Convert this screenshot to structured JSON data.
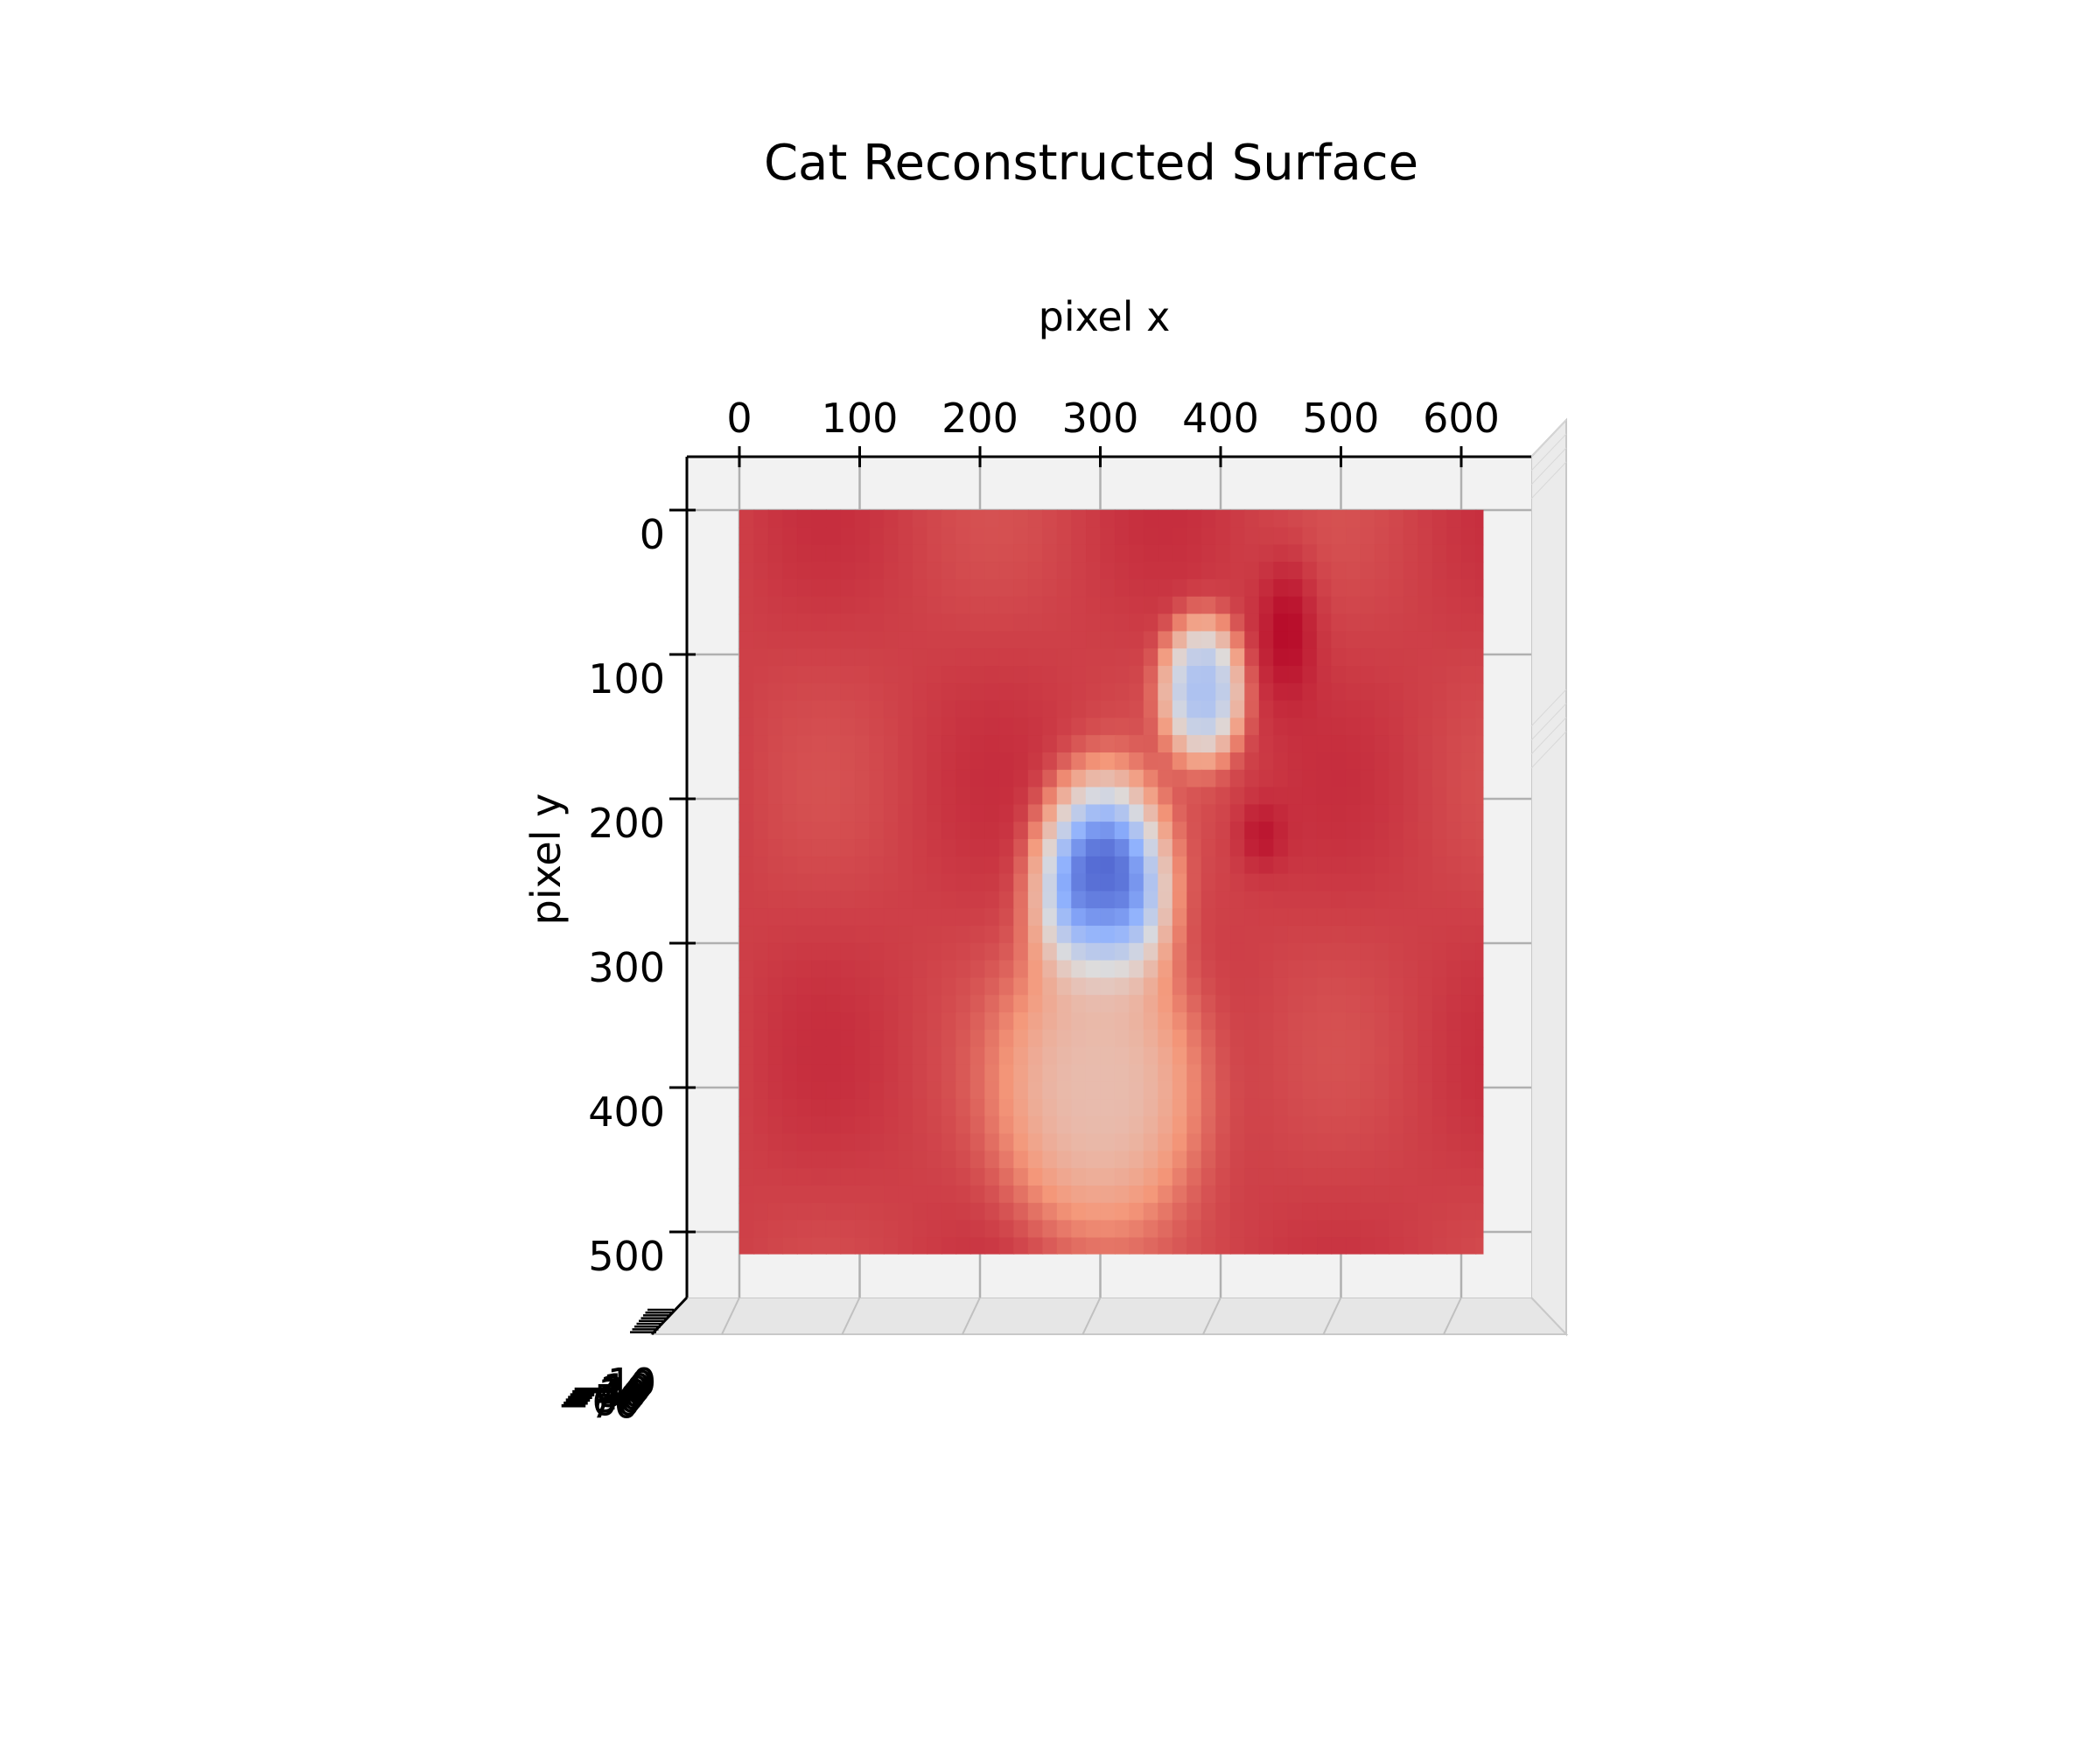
{
  "chart_data": {
    "type": "surface",
    "title": "Cat Reconstructed Surface",
    "xlabel": "pixel x",
    "ylabel": "pixel y",
    "zlabel": "",
    "colormap": "coolwarm",
    "view": "top-down (elevation 90°)",
    "xlim": [
      -42,
      658
    ],
    "ylim": [
      -35,
      555
    ],
    "surface_extent": {
      "x": [
        0,
        618
      ],
      "y": [
        0,
        515
      ]
    },
    "x_ticks": [
      0,
      100,
      200,
      300,
      400,
      500,
      600
    ],
    "y_ticks": [
      0,
      100,
      200,
      300,
      400,
      500
    ],
    "z_ticks_overlapping": [
      "10",
      "0",
      "−10",
      "−20",
      "−30",
      "−40",
      "−50",
      "−60",
      "−70"
    ],
    "colors": {
      "high": "#b40426",
      "mid": "#dddcdc",
      "low": "#3b4cc0",
      "pane": "#f2f2f2",
      "grid": "#b0b0b0"
    },
    "depth_regions": [
      {
        "name": "body",
        "center": [
          302,
          265
        ],
        "radii": [
          55,
          80
        ],
        "min_level": 0.05
      },
      {
        "name": "head",
        "center": [
          385,
          125
        ],
        "radii": [
          35,
          50
        ],
        "min_level": 0.35
      },
      {
        "name": "lower-glow",
        "center": [
          300,
          400
        ],
        "radii": [
          90,
          110
        ],
        "min_level": 0.62
      }
    ],
    "high_regions": [
      {
        "name": "edge-shadow-top",
        "center": [
          455,
          85
        ],
        "radii": [
          30,
          60
        ],
        "max_level": 0.99
      },
      {
        "name": "edge-shadow-mid",
        "center": [
          435,
          225
        ],
        "radii": [
          25,
          30
        ],
        "max_level": 0.97
      }
    ],
    "background_level": 0.9
  }
}
